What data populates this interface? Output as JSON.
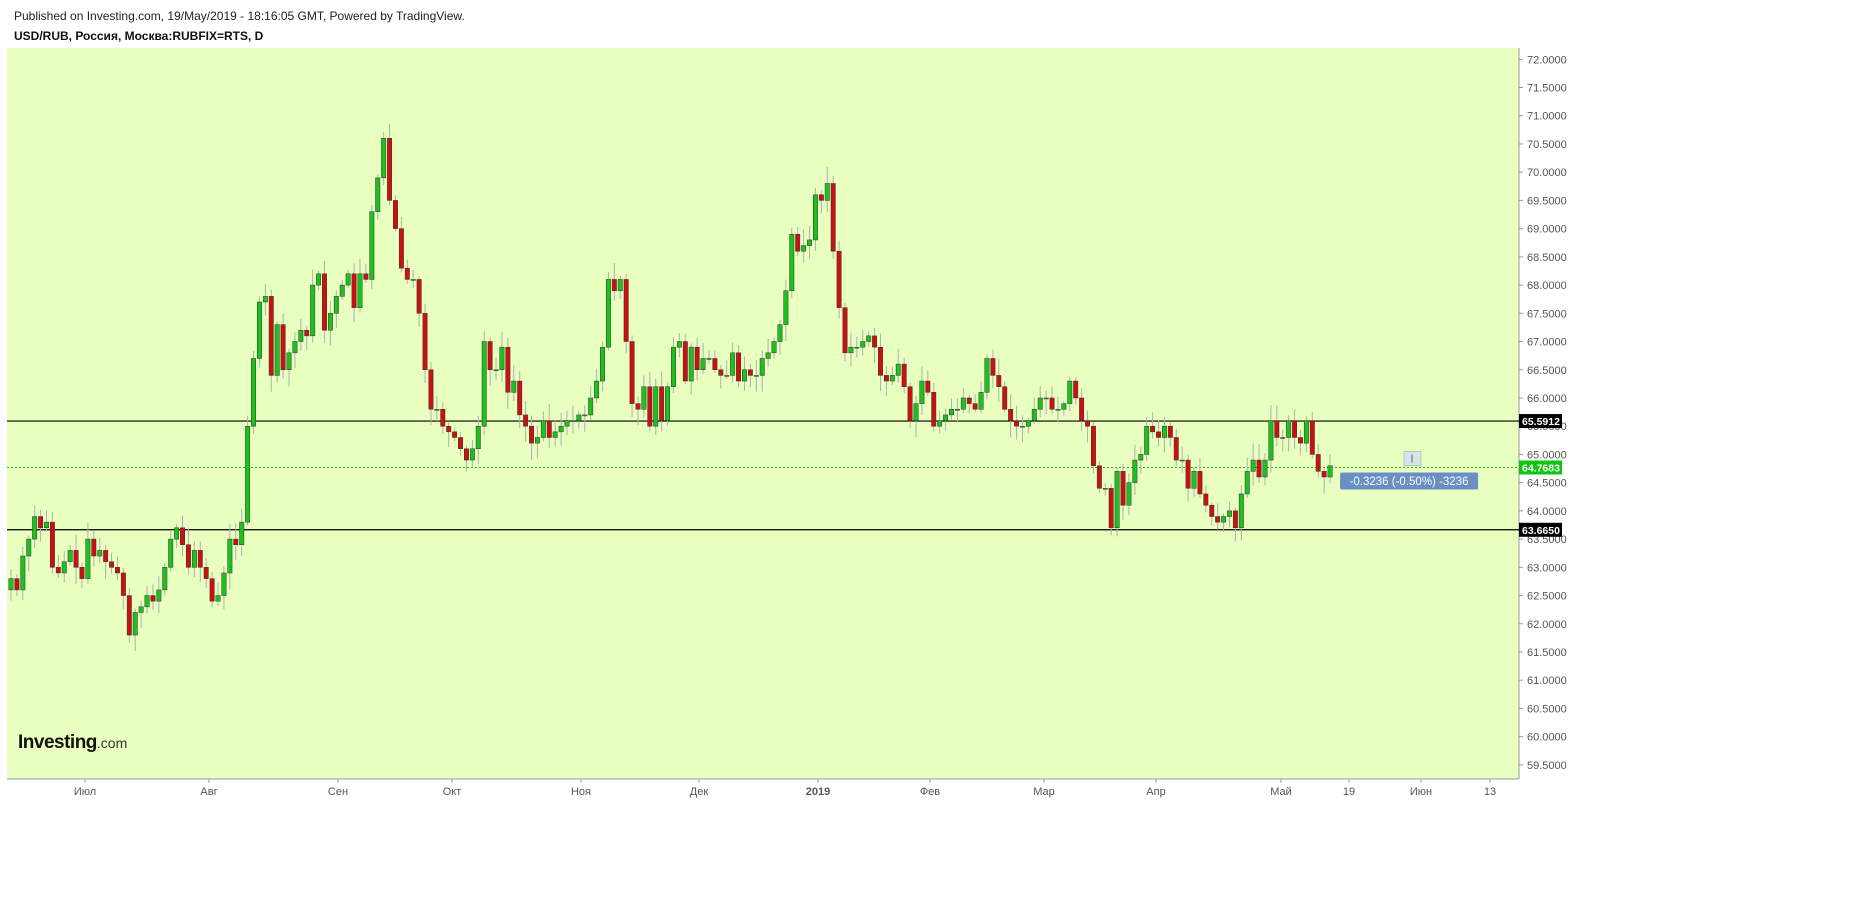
{
  "header": {
    "published": "Published on Investing.com, 19/May/2019 - 18:16:05 GMT, Powered by TradingView.",
    "symbol": "USD/RUB, Россия, Москва:RUBFIX=RTS, D"
  },
  "logo": {
    "main": "Investing",
    "suffix": ".com"
  },
  "colors": {
    "plot_bg": "#e8ffc0",
    "up": "#1ec01e",
    "down": "#cc1010",
    "wick": "#b0b0b0",
    "line": "#000000",
    "current": "#11c411",
    "change_badge": "#6a8fc4"
  },
  "chart_data": {
    "type": "candlestick",
    "title": "USD/RUB, Россия, Москва:RUBFIX=RTS, D",
    "ylim": [
      59.25,
      72.2
    ],
    "y_ticks": [
      "59.5000",
      "60.0000",
      "60.5000",
      "61.0000",
      "61.5000",
      "62.0000",
      "62.5000",
      "63.0000",
      "63.5000",
      "64.0000",
      "64.5000",
      "65.0000",
      "65.5000",
      "66.0000",
      "66.5000",
      "67.0000",
      "67.5000",
      "68.0000",
      "68.5000",
      "69.0000",
      "69.5000",
      "70.0000",
      "70.5000",
      "71.0000",
      "71.5000",
      "72.0000"
    ],
    "x_labels": [
      "Июл",
      "Авг",
      "Сен",
      "Окт",
      "Ноя",
      "Дек",
      "2019",
      "Фев",
      "Мар",
      "Апр",
      "Май",
      "19",
      "Июн",
      "13"
    ],
    "x_label_bold": "2019",
    "horizontal_lines": [
      {
        "value": 65.5912,
        "label": "65.5912"
      },
      {
        "value": 63.665,
        "label": "63.6650"
      }
    ],
    "current": {
      "value": 64.7683,
      "label": "64.7683"
    },
    "change_text": "-0.3236 (-0.50%) -3236",
    "closes": [
      62.8,
      62.6,
      63.2,
      63.5,
      63.9,
      63.7,
      63.8,
      63.0,
      62.9,
      63.1,
      63.3,
      63.0,
      62.8,
      63.5,
      63.2,
      63.3,
      63.1,
      63.0,
      62.9,
      62.5,
      61.8,
      62.2,
      62.3,
      62.5,
      62.4,
      62.6,
      63.0,
      63.5,
      63.7,
      63.4,
      63.0,
      63.3,
      63.0,
      62.8,
      62.4,
      62.5,
      62.9,
      63.5,
      63.4,
      63.8,
      65.5,
      66.7,
      67.7,
      67.8,
      66.4,
      67.3,
      66.5,
      66.8,
      67.0,
      67.2,
      67.1,
      68.0,
      68.2,
      67.2,
      67.5,
      67.8,
      68.0,
      68.2,
      67.6,
      68.2,
      68.1,
      69.3,
      69.9,
      70.6,
      69.5,
      69.0,
      68.3,
      68.1,
      68.1,
      67.5,
      66.5,
      65.8,
      65.8,
      65.5,
      65.4,
      65.3,
      65.1,
      64.9,
      65.1,
      65.5,
      67.0,
      66.5,
      66.5,
      66.9,
      66.1,
      66.3,
      65.7,
      65.5,
      65.2,
      65.3,
      65.6,
      65.3,
      65.4,
      65.5,
      65.6,
      65.6,
      65.7,
      65.7,
      66.0,
      66.3,
      66.9,
      68.1,
      67.9,
      68.1,
      67.0,
      65.9,
      65.8,
      66.2,
      65.5,
      66.2,
      65.6,
      66.2,
      66.9,
      67.0,
      66.3,
      66.9,
      66.5,
      66.7,
      66.7,
      66.5,
      66.4,
      66.4,
      66.8,
      66.3,
      66.5,
      66.4,
      66.4,
      66.7,
      66.8,
      67.0,
      67.3,
      67.9,
      68.9,
      68.6,
      68.7,
      68.8,
      69.6,
      69.5,
      69.8,
      68.6,
      67.6,
      66.8,
      66.9,
      66.9,
      67.0,
      67.1,
      66.9,
      66.4,
      66.3,
      66.4,
      66.6,
      66.2,
      65.6,
      65.9,
      66.3,
      66.1,
      65.5,
      65.6,
      65.7,
      65.8,
      65.8,
      66.0,
      65.9,
      65.8,
      66.1,
      66.7,
      66.4,
      66.2,
      65.8,
      65.6,
      65.5,
      65.5,
      65.6,
      65.8,
      66.0,
      66.0,
      65.8,
      65.8,
      65.9,
      66.3,
      66.0,
      65.6,
      65.5,
      64.8,
      64.4,
      64.4,
      63.7,
      64.7,
      64.1,
      64.5,
      64.9,
      65.0,
      65.5,
      65.4,
      65.3,
      65.5,
      65.3,
      64.9,
      64.9,
      64.4,
      64.7,
      64.3,
      64.1,
      63.9,
      63.8,
      63.9,
      64.0,
      63.7,
      64.3,
      64.7,
      64.9,
      64.6,
      64.9,
      65.6,
      65.3,
      65.3,
      65.6,
      65.3,
      65.2,
      65.6,
      65.0,
      64.7,
      64.6,
      64.8
    ]
  }
}
